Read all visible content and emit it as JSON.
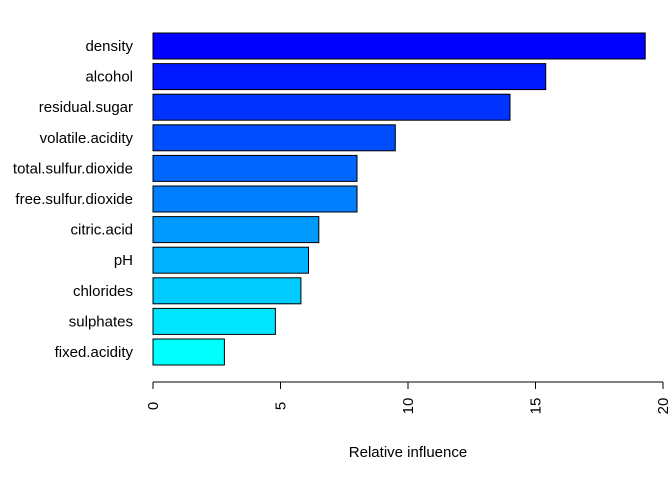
{
  "chart_data": {
    "type": "bar",
    "orientation": "horizontal",
    "categories": [
      "density",
      "alcohol",
      "residual.sugar",
      "volatile.acidity",
      "total.sulfur.dioxide",
      "free.sulfur.dioxide",
      "citric.acid",
      "pH",
      "chlorides",
      "sulphates",
      "fixed.acidity"
    ],
    "values": [
      19.3,
      15.4,
      14.0,
      9.5,
      8.0,
      8.0,
      6.5,
      6.1,
      5.8,
      4.8,
      2.8
    ],
    "bar_colors": [
      "#0000FF",
      "#0019FF",
      "#0033FF",
      "#004CFF",
      "#0066FF",
      "#0080FF",
      "#0099FF",
      "#00B2FF",
      "#00CCFF",
      "#00E5FF",
      "#00FFFF"
    ],
    "xlabel": "Relative influence",
    "ylabel": "",
    "title": "",
    "xlim": [
      0,
      20
    ],
    "xticks": [
      0,
      5,
      10,
      15,
      20
    ],
    "xtick_labels": [
      "0",
      "5",
      "10",
      "15",
      "20"
    ],
    "grid": false,
    "legend": "none"
  }
}
